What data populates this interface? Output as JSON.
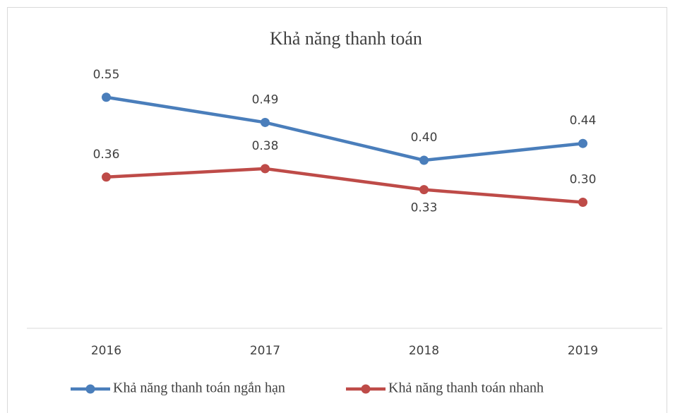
{
  "chart_data": {
    "type": "line",
    "title": "Khả năng thanh toán",
    "categories": [
      "2016",
      "2017",
      "2018",
      "2019"
    ],
    "series": [
      {
        "name": "Khả năng thanh toán ngắn hạn",
        "color": "#4a7ebb",
        "values": [
          0.55,
          0.49,
          0.4,
          0.44
        ],
        "value_labels": [
          "0.55",
          "0.49",
          "0.40",
          "0.44"
        ]
      },
      {
        "name": "Khả năng thanh toán nhanh",
        "color": "#be4b48",
        "values": [
          0.36,
          0.38,
          0.33,
          0.3
        ],
        "value_labels": [
          "0.36",
          "0.38",
          "0.33",
          "0.30"
        ]
      }
    ],
    "ylim": [
      0,
      0.6
    ],
    "legend": "bottom"
  }
}
